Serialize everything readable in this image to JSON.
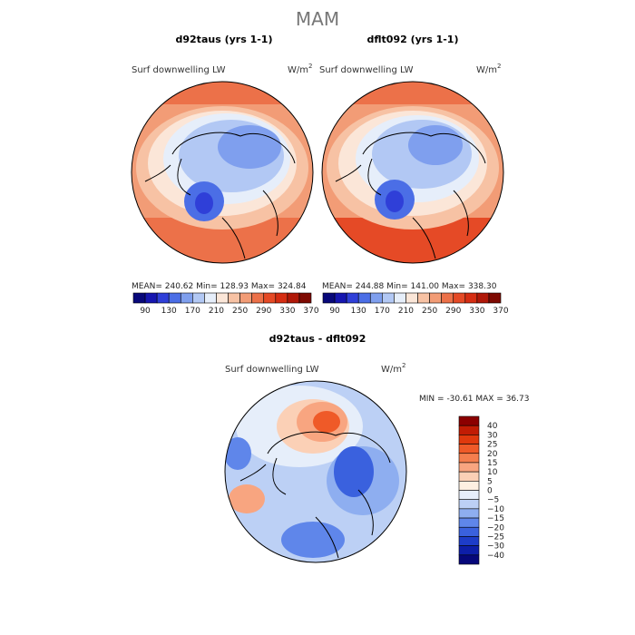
{
  "chart_data": {
    "type": "heatmap",
    "title": "MAM",
    "variable_label": "Surf downwelling LW",
    "units_base": "W/m",
    "units_exp": "2",
    "panels": [
      {
        "title": "d92taus (yrs 1-1)",
        "mean_label": "MEAN=",
        "mean": "240.62",
        "min_label": "Min=",
        "min": "128.93",
        "max_label": "Max=",
        "max": "324.84",
        "colorbar_ticks": [
          "90",
          "130",
          "170",
          "210",
          "250",
          "290",
          "330",
          "370"
        ]
      },
      {
        "title": "dflt092 (yrs 1-1)",
        "mean_label": "MEAN=",
        "mean": "244.88",
        "min_label": "Min=",
        "min": "141.00",
        "max_label": "Max=",
        "max": "338.30",
        "colorbar_ticks": [
          "90",
          "130",
          "170",
          "210",
          "250",
          "290",
          "330",
          "370"
        ]
      }
    ],
    "diff_panel": {
      "title": "d92taus - dflt092",
      "min_label": "MIN =",
      "min": "-30.61",
      "max_label": "MAX =",
      "max": "36.73",
      "colorbar_ticks": [
        "40",
        "30",
        "25",
        "20",
        "15",
        "10",
        "5",
        "0",
        "−5",
        "−10",
        "−15",
        "−20",
        "−25",
        "−30",
        "−40"
      ]
    },
    "abs_levels": [
      90,
      110,
      130,
      150,
      170,
      190,
      210,
      230,
      250,
      270,
      290,
      310,
      330,
      350,
      370
    ],
    "abs_colors": [
      "#08087a",
      "#1616b0",
      "#2f3fd8",
      "#4b6ee6",
      "#7f9fee",
      "#b2c8f4",
      "#e6eefa",
      "#fbe6d8",
      "#f7c2a4",
      "#f29c76",
      "#ec7149",
      "#e54a26",
      "#d52d12",
      "#b01808",
      "#7e0a02"
    ],
    "diff_colors": [
      "#8b0000",
      "#c11c04",
      "#e0390d",
      "#ef5a28",
      "#f47e4e",
      "#f8a580",
      "#fbd0b6",
      "#fdf0e2",
      "#e6eefa",
      "#bcd0f5",
      "#8eaef0",
      "#5f86ea",
      "#3a61de",
      "#1d3cc8",
      "#0d1ea8",
      "#06077a"
    ]
  }
}
